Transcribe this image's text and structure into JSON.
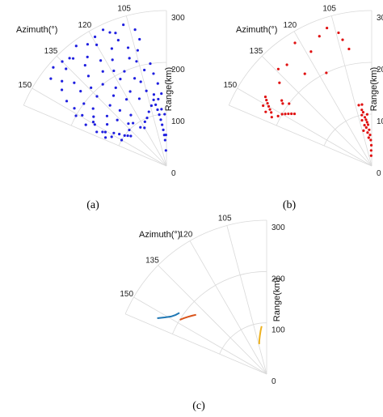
{
  "chart_data": [
    {
      "type": "scatter",
      "panel": "(a)",
      "azimuth_label": "Azimuth(°)",
      "range_label": "Range(km)",
      "azimuth_ticks": [
        "105",
        "120",
        "135",
        "150"
      ],
      "range_ticks": [
        "0",
        "100",
        "200",
        "300"
      ],
      "azimuth_range": [
        90,
        157
      ],
      "range_limit": [
        0,
        300
      ],
      "grid": true,
      "marker_color": "#1f1fe0",
      "series": [
        {
          "points": [
            [
              152,
              120
            ],
            [
              151,
              135
            ],
            [
              150,
              160
            ],
            [
              149,
              190
            ],
            [
              148,
              210
            ],
            [
              147,
              230
            ],
            [
              146,
              170
            ],
            [
              145,
              140
            ],
            [
              144,
              250
            ],
            [
              143,
              200
            ],
            [
              142,
              180
            ],
            [
              141,
              260
            ],
            [
              140,
              150
            ],
            [
              139,
              220
            ],
            [
              138,
              240
            ],
            [
              137,
              130
            ],
            [
              136,
              270
            ],
            [
              135,
              190
            ],
            [
              134,
              210
            ],
            [
              133,
              160
            ],
            [
              132,
              280
            ],
            [
              131,
              230
            ],
            [
              130,
              140
            ],
            [
              129,
              250
            ],
            [
              128,
              200
            ],
            [
              127,
              170
            ],
            [
              126,
              260
            ],
            [
              125,
              120
            ],
            [
              124,
              220
            ],
            [
              123,
              180
            ],
            [
              122,
              240
            ],
            [
              121,
              150
            ],
            [
              120,
              270
            ],
            [
              119,
              210
            ],
            [
              118,
              190
            ],
            [
              117,
              230
            ],
            [
              116,
              160
            ],
            [
              115,
              250
            ],
            [
              114,
              200
            ],
            [
              113,
              280
            ],
            [
              112,
              140
            ],
            [
              111,
              260
            ],
            [
              110,
              180
            ],
            [
              109,
              220
            ],
            [
              108,
              240
            ],
            [
              107,
              170
            ],
            [
              106,
              210
            ],
            [
              105,
              150
            ],
            [
              104,
              230
            ],
            [
              103,
              190
            ],
            [
              102,
              250
            ],
            [
              101,
              130
            ],
            [
              100,
              120
            ],
            [
              99,
              110
            ],
            [
              98,
              100
            ],
            [
              97,
              90
            ],
            [
              96,
              80
            ],
            [
              95,
              70
            ],
            [
              94,
              60
            ],
            [
              93,
              50
            ],
            [
              148,
              120
            ],
            [
              146,
              110
            ],
            [
              144,
              100
            ],
            [
              142,
              95
            ],
            [
              140,
              90
            ],
            [
              150,
              100
            ],
            [
              152,
              140
            ],
            [
              154,
              150
            ],
            [
              155,
              130
            ],
            [
              153,
              175
            ],
            [
              151,
              200
            ],
            [
              149,
              165
            ],
            [
              136,
              100
            ],
            [
              132,
              110
            ],
            [
              128,
              105
            ],
            [
              124,
              90
            ],
            [
              120,
              85
            ],
            [
              116,
              95
            ],
            [
              112,
              100
            ],
            [
              108,
              110
            ],
            [
              104,
              120
            ],
            [
              100,
              140
            ],
            [
              97,
              130
            ],
            [
              95,
              110
            ],
            [
              143,
              280
            ],
            [
              139,
              290
            ],
            [
              135,
              285
            ],
            [
              131,
              275
            ],
            [
              127,
              290
            ],
            [
              123,
              280
            ],
            [
              119,
              285
            ],
            [
              115,
              290
            ],
            [
              111,
              275
            ],
            [
              107,
              285
            ],
            [
              103,
              270
            ],
            [
              99,
              200
            ],
            [
              98,
              180
            ],
            [
              96,
              160
            ],
            [
              94,
              140
            ],
            [
              92,
              100
            ],
            [
              91,
              60
            ],
            [
              92,
              30
            ]
          ]
        }
      ]
    },
    {
      "type": "scatter",
      "panel": "(b)",
      "azimuth_label": "Azimuth(°)",
      "range_label": "Range(km)",
      "azimuth_ticks": [
        "105",
        "120",
        "135",
        "150"
      ],
      "range_ticks": [
        "0",
        "100",
        "200",
        "300"
      ],
      "azimuth_range": [
        90,
        157
      ],
      "range_limit": [
        0,
        300
      ],
      "grid": true,
      "marker_color": "#e01010",
      "series": [
        {
          "points": [
            [
              152,
              220
            ],
            [
              151,
              225
            ],
            [
              150,
              230
            ],
            [
              149,
              235
            ],
            [
              148,
              240
            ],
            [
              147,
              245
            ],
            [
              150,
              200
            ],
            [
              149,
              195
            ],
            [
              148,
              190
            ],
            [
              147,
              185
            ],
            [
              146,
              180
            ],
            [
              152,
              205
            ],
            [
              145,
              210
            ],
            [
              144,
              215
            ],
            [
              143,
              200
            ],
            [
              154,
              215
            ],
            [
              153,
              230
            ],
            [
              151,
              240
            ],
            [
              138,
              240
            ],
            [
              130,
              255
            ],
            [
              126,
              220
            ],
            [
              118,
              250
            ],
            [
              112,
              270
            ],
            [
              108,
              280
            ],
            [
              104,
              265
            ],
            [
              103,
              250
            ],
            [
              101,
              230
            ],
            [
              122,
              280
            ],
            [
              134,
              260
            ],
            [
              116,
              200
            ],
            [
              100,
              110
            ],
            [
              99,
              105
            ],
            [
              98,
              95
            ],
            [
              97,
              90
            ],
            [
              96,
              85
            ],
            [
              95,
              80
            ],
            [
              94,
              70
            ],
            [
              93,
              60
            ],
            [
              92,
              50
            ],
            [
              91,
              40
            ],
            [
              92,
              30
            ],
            [
              93,
              20
            ],
            [
              101,
              100
            ],
            [
              102,
              90
            ],
            [
              100,
              80
            ],
            [
              98,
              75
            ],
            [
              97,
              65
            ],
            [
              96,
              55
            ],
            [
              103,
              70
            ],
            [
              99,
              120
            ],
            [
              102,
              120
            ],
            [
              95,
              100
            ]
          ]
        }
      ]
    },
    {
      "type": "line",
      "panel": "(c)",
      "azimuth_label": "Azimuth(°)",
      "range_label": "Range(km)",
      "azimuth_ticks": [
        "105",
        "120",
        "135",
        "150"
      ],
      "range_ticks": [
        "0",
        "100",
        "200",
        "300"
      ],
      "azimuth_range": [
        90,
        157
      ],
      "range_limit": [
        0,
        300
      ],
      "grid": true,
      "series": [
        {
          "color": "#1f77b4",
          "points": [
            [
              153,
              240
            ],
            [
              151,
              228
            ],
            [
              149,
              218
            ],
            [
              147,
              212
            ],
            [
              145,
              208
            ]
          ]
        },
        {
          "color": "#d9541a",
          "points": [
            [
              148,
              200
            ],
            [
              146,
              195
            ],
            [
              144,
              190
            ],
            [
              142,
              185
            ],
            [
              140,
              180
            ]
          ]
        },
        {
          "color": "#edb120",
          "points": [
            [
              104,
              60
            ],
            [
              102,
              68
            ],
            [
              100,
              76
            ],
            [
              98,
              85
            ],
            [
              96,
              94
            ]
          ]
        }
      ]
    }
  ]
}
